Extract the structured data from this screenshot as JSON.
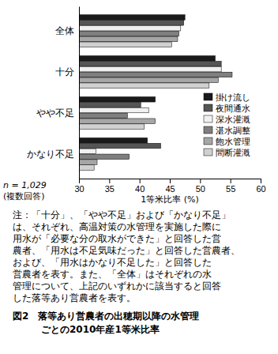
{
  "chart_data": {
    "type": "bar",
    "orientation": "horizontal",
    "categories": [
      "全体",
      "十分",
      "やや不足",
      "かなり不足"
    ],
    "series": [
      {
        "name": "掛け流し",
        "color": "#1a1a1a",
        "values": [
          47.5,
          52.5,
          42.6,
          41.3
        ]
      },
      {
        "name": "夜間通水",
        "color": "#555555",
        "values": [
          47.3,
          53.5,
          40.2,
          43.5
        ]
      },
      {
        "name": "深水灌漑",
        "color": "#f0f0f0",
        "values": [
          46.8,
          53.5,
          41.5,
          32.8
        ]
      },
      {
        "name": "湛水調整",
        "color": "#7f7f7f",
        "values": [
          46.5,
          55.3,
          38.0,
          38.3
        ]
      },
      {
        "name": "飽水管理",
        "color": "#a6a6a6",
        "values": [
          46.3,
          53.0,
          42.6,
          33.0
        ]
      },
      {
        "name": "間断灌漑",
        "color": "#d0d0d0",
        "values": [
          45.3,
          51.5,
          40.8,
          32.5
        ]
      }
    ],
    "xlim": [
      30,
      60
    ],
    "xticks": [
      30,
      35,
      40,
      45,
      50,
      55,
      60
    ],
    "x_label": "1等米比率 (%)",
    "legend": "right",
    "annotation": [
      "n = 1,029",
      "(複数回答)"
    ],
    "notes": [
      "注：「十分」、「やや不足」および「かなり不足」",
      "は、それぞれ、高温対策の水管理を実施した際に",
      "用水が「必要な分の取水ができた」と回答した営",
      "農者、「用水は不足気味だった」と回答した営農者、",
      "および、「用水はかなり不足した」と回答した",
      "営農者を表す。また、「全体」はそれぞれの水",
      "管理について、上記のいずれかに該当すると回答",
      "した落等あり営農者を表す。"
    ],
    "caption": [
      "図2　落等あり営農者の出穂期以降の水管理",
      "ごとの2010年産1等米比率"
    ]
  }
}
